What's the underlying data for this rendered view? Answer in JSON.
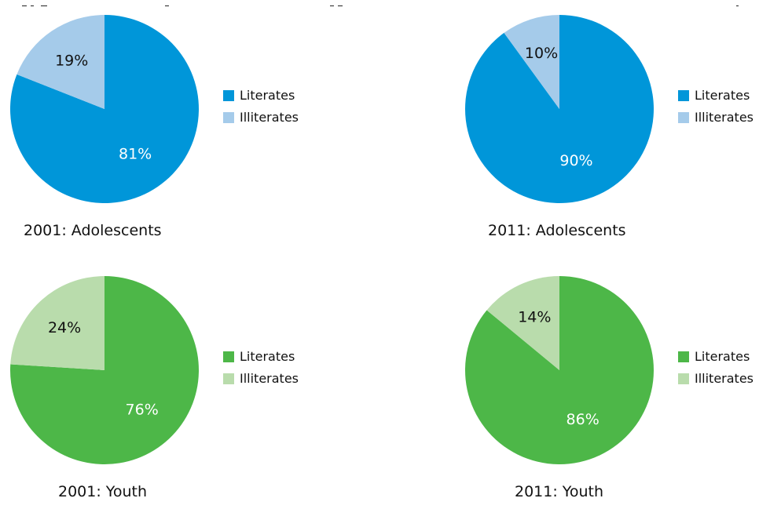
{
  "chart_data": [
    {
      "type": "pie",
      "caption": "2001: Adolescents",
      "slices": [
        {
          "label": "Literates",
          "value": 81,
          "text": "81%",
          "color": "#0096d9",
          "text_color": "#ffffff"
        },
        {
          "label": "Illiterates",
          "value": 19,
          "text": "19%",
          "color": "#a5cbea",
          "text_color": "#111111"
        }
      ],
      "legend": [
        "Literates",
        "Illiterates"
      ]
    },
    {
      "type": "pie",
      "caption": "2011: Adolescents",
      "slices": [
        {
          "label": "Literates",
          "value": 90,
          "text": "90%",
          "color": "#0096d9",
          "text_color": "#ffffff"
        },
        {
          "label": "Illiterates",
          "value": 10,
          "text": "10%",
          "color": "#a5cbea",
          "text_color": "#111111"
        }
      ],
      "legend": [
        "Literates",
        "Illiterates"
      ]
    },
    {
      "type": "pie",
      "caption": "2001: Youth",
      "slices": [
        {
          "label": "Literates",
          "value": 76,
          "text": "76%",
          "color": "#4db748",
          "text_color": "#ffffff"
        },
        {
          "label": "Illiterates",
          "value": 24,
          "text": "24%",
          "color": "#b9dcac",
          "text_color": "#111111"
        }
      ],
      "legend": [
        "Literates",
        "Illiterates"
      ]
    },
    {
      "type": "pie",
      "caption": "2011: Youth",
      "slices": [
        {
          "label": "Literates",
          "value": 86,
          "text": "86%",
          "color": "#4db748",
          "text_color": "#ffffff"
        },
        {
          "label": "Illiterates",
          "value": 14,
          "text": "14%",
          "color": "#b9dcac",
          "text_color": "#111111"
        }
      ],
      "legend": [
        "Literates",
        "Illiterates"
      ]
    }
  ]
}
